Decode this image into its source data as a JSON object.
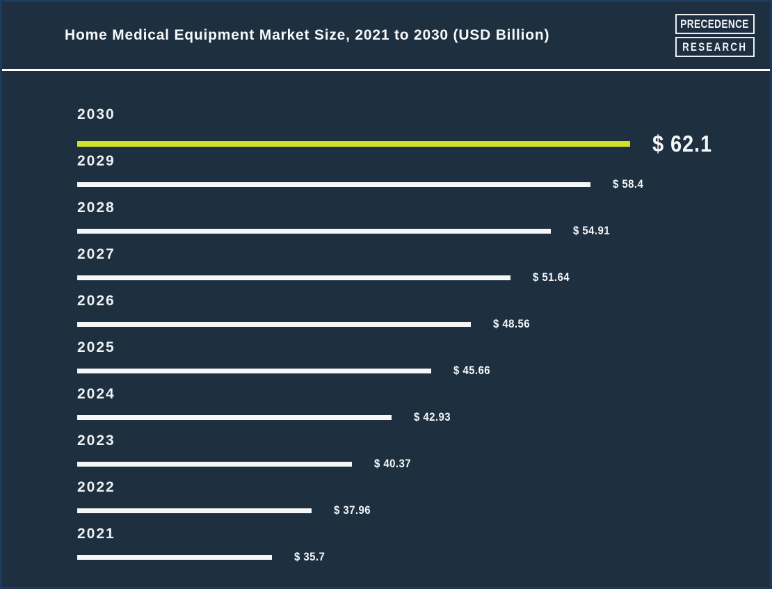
{
  "header": {
    "title": "Home Medical Equipment Market Size, 2021 to 2030 (USD Billion)",
    "logo": {
      "line1": "PRECEDENCE",
      "line2": "RESEARCH"
    }
  },
  "chart_data": {
    "type": "bar",
    "orientation": "horizontal",
    "title": "Home Medical Equipment Market Size, 2021 to 2030 (USD Billion)",
    "unit": "USD Billion",
    "categories": [
      "2030",
      "2029",
      "2028",
      "2027",
      "2026",
      "2025",
      "2024",
      "2023",
      "2022",
      "2021"
    ],
    "values": [
      62.1,
      58.4,
      54.91,
      51.64,
      48.56,
      45.66,
      42.93,
      40.37,
      37.96,
      35.7
    ],
    "value_labels": [
      "$ 62.1",
      "$ 58.4",
      "$ 54.91",
      "$ 51.64",
      "$ 48.56",
      "$ 45.66",
      "$ 42.93",
      "$ 40.37",
      "$ 37.96",
      "$ 35.7"
    ],
    "highlight_category": "2030",
    "grid": false,
    "legend": "none",
    "colors": {
      "background": "#1e2f40",
      "bar": "#f5f7f8",
      "highlight_bar": "#d2e029",
      "text": "#f7f9fa",
      "border": "#1c3a5f"
    }
  }
}
